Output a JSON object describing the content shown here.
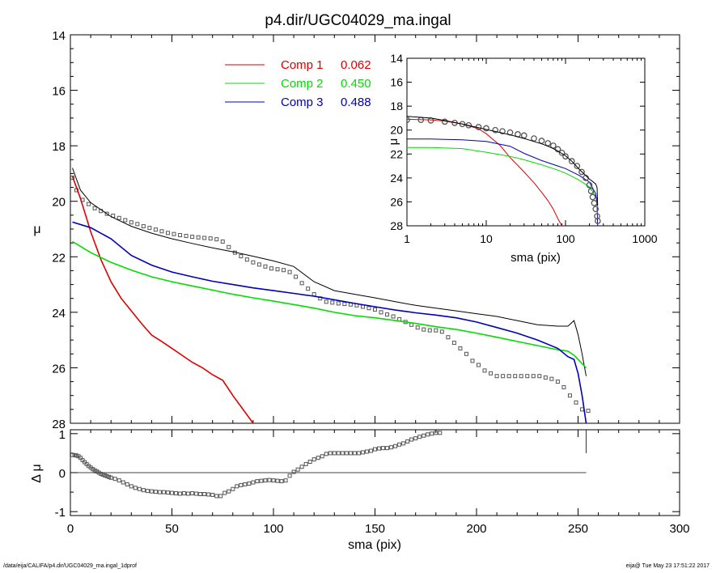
{
  "title": "p4.dir/UGC04029_ma.ingal",
  "footer_left": "/data/eija/CALIFA/p4.dir/UGC04029_ma.ingal_1dprof",
  "footer_right": "eija@  Tue May 23 17:51:22 2017",
  "colors": {
    "comp1": "#dd0000",
    "comp2": "#00dd00",
    "comp3": "#0000bb",
    "total": "#000000",
    "data": "#555555"
  },
  "chart_data": [
    {
      "type": "line",
      "panel": "main",
      "xlabel": "",
      "ylabel": "μ",
      "xlim": [
        0,
        300
      ],
      "ylim": [
        28,
        14
      ],
      "yticks": [
        "14",
        "16",
        "18",
        "20",
        "22",
        "24",
        "26",
        "28"
      ],
      "legend": [
        {
          "label": "Comp 1",
          "value": "0.062",
          "color": "#dd0000"
        },
        {
          "label": "Comp 2",
          "value": "0.450",
          "color": "#00dd00"
        },
        {
          "label": "Comp 3",
          "value": "0.488",
          "color": "#0000bb"
        }
      ],
      "legend_position": "top-center",
      "series": [
        {
          "role": "data",
          "marker": "square",
          "x": [
            1,
            3,
            6,
            9,
            12,
            15,
            18,
            21,
            24,
            27,
            30,
            33,
            36,
            39,
            42,
            45,
            48,
            51,
            54,
            57,
            60,
            63,
            66,
            69,
            72,
            75,
            78,
            81,
            84,
            87,
            90,
            93,
            96,
            99,
            102,
            105,
            108,
            111,
            114,
            117,
            120,
            123,
            126,
            129,
            132,
            135,
            138,
            141,
            144,
            147,
            150,
            153,
            156,
            159,
            162,
            165,
            168,
            171,
            174,
            177,
            180,
            183,
            186,
            189,
            192,
            195,
            198,
            201,
            204,
            207,
            210,
            213,
            216,
            219,
            222,
            225,
            228,
            231,
            234,
            237,
            240,
            243,
            246,
            249,
            252,
            255
          ],
          "y": [
            19.15,
            19.6,
            19.95,
            20.1,
            20.25,
            20.35,
            20.45,
            20.52,
            20.6,
            20.68,
            20.76,
            20.82,
            20.9,
            20.96,
            21.02,
            21.08,
            21.14,
            21.18,
            21.22,
            21.25,
            21.28,
            21.3,
            21.32,
            21.34,
            21.37,
            21.45,
            21.65,
            21.85,
            21.98,
            22.1,
            22.2,
            22.28,
            22.35,
            22.42,
            22.45,
            22.48,
            22.55,
            22.72,
            22.95,
            23.15,
            23.35,
            23.5,
            23.62,
            23.65,
            23.68,
            23.7,
            23.72,
            23.75,
            23.8,
            23.85,
            23.9,
            24.0,
            24.08,
            24.15,
            24.25,
            24.35,
            24.45,
            24.55,
            24.62,
            24.65,
            24.65,
            24.7,
            24.9,
            25.1,
            25.3,
            25.5,
            25.75,
            25.9,
            26.1,
            26.2,
            26.3,
            26.3,
            26.3,
            26.3,
            26.3,
            26.3,
            26.3,
            26.3,
            26.35,
            26.4,
            26.5,
            26.7,
            27.0,
            27.25,
            27.5,
            27.55
          ]
        },
        {
          "role": "total",
          "x": [
            1,
            5,
            10,
            15,
            20,
            30,
            40,
            50,
            60,
            70,
            80,
            90,
            100,
            110,
            120,
            130,
            140,
            150,
            160,
            170,
            180,
            190,
            200,
            210,
            220,
            230,
            240,
            245,
            248,
            250,
            252,
            254
          ],
          "y": [
            18.8,
            19.6,
            20.05,
            20.3,
            20.55,
            20.9,
            21.15,
            21.35,
            21.52,
            21.68,
            21.82,
            21.98,
            22.15,
            22.35,
            22.9,
            23.22,
            23.35,
            23.48,
            23.62,
            23.75,
            23.85,
            23.95,
            24.05,
            24.15,
            24.3,
            24.45,
            24.5,
            24.5,
            24.3,
            24.8,
            25.5,
            26.3
          ]
        },
        {
          "role": "comp1",
          "x": [
            1,
            5,
            10,
            15,
            20,
            25,
            30,
            35,
            40,
            45,
            50,
            55,
            60,
            65,
            70,
            75,
            80,
            85,
            90
          ],
          "y": [
            19.1,
            19.9,
            21.1,
            22.1,
            22.9,
            23.5,
            23.95,
            24.4,
            24.82,
            25.05,
            25.3,
            25.55,
            25.8,
            26.0,
            26.25,
            26.45,
            27.0,
            27.5,
            28.0
          ]
        },
        {
          "role": "comp2",
          "x": [
            1,
            10,
            20,
            30,
            40,
            50,
            60,
            70,
            80,
            90,
            100,
            110,
            120,
            130,
            140,
            150,
            160,
            170,
            180,
            190,
            200,
            210,
            220,
            230,
            240,
            245,
            248,
            250,
            252,
            254
          ],
          "y": [
            21.45,
            21.85,
            22.2,
            22.48,
            22.72,
            22.9,
            23.05,
            23.2,
            23.35,
            23.48,
            23.6,
            23.72,
            23.85,
            24.0,
            24.12,
            24.2,
            24.3,
            24.4,
            24.52,
            24.62,
            24.75,
            24.9,
            25.05,
            25.2,
            25.35,
            25.4,
            25.55,
            25.7,
            25.85,
            26.0
          ]
        },
        {
          "role": "comp3",
          "x": [
            1,
            10,
            20,
            30,
            40,
            50,
            60,
            70,
            80,
            90,
            100,
            110,
            120,
            130,
            140,
            150,
            160,
            170,
            180,
            190,
            200,
            210,
            220,
            230,
            240,
            245,
            248,
            250,
            252,
            254
          ],
          "y": [
            20.75,
            20.95,
            21.35,
            21.95,
            22.3,
            22.55,
            22.72,
            22.88,
            23.0,
            23.12,
            23.22,
            23.32,
            23.42,
            23.55,
            23.68,
            23.8,
            23.92,
            24.02,
            24.1,
            24.2,
            24.35,
            24.55,
            24.75,
            25.0,
            25.3,
            25.6,
            25.7,
            26.2,
            27.0,
            28.0
          ]
        }
      ]
    },
    {
      "type": "scatter",
      "panel": "residual",
      "xlabel": "sma (pix)",
      "ylabel": "Δ μ",
      "xlim": [
        0,
        300
      ],
      "ylim": [
        -1.1,
        1.1
      ],
      "xticks": [
        "0",
        "50",
        "100",
        "150",
        "200",
        "250",
        "300"
      ],
      "yticks": [
        "-1",
        "0",
        "1"
      ],
      "zero_line": true,
      "series": [
        {
          "role": "residual",
          "marker": "square",
          "x": [
            1,
            2,
            3,
            4,
            5,
            6,
            7,
            8,
            9,
            10,
            11,
            12,
            13,
            14,
            15,
            16,
            17,
            18,
            19,
            20,
            22,
            24,
            26,
            28,
            30,
            32,
            34,
            36,
            38,
            40,
            42,
            44,
            46,
            48,
            50,
            52,
            54,
            56,
            58,
            60,
            62,
            64,
            66,
            68,
            70,
            72,
            74,
            76,
            78,
            80,
            82,
            84,
            86,
            88,
            90,
            92,
            94,
            96,
            98,
            100,
            102,
            104,
            106,
            108,
            110,
            112,
            114,
            116,
            118,
            120,
            122,
            124,
            126,
            128,
            130,
            132,
            134,
            136,
            138,
            140,
            142,
            144,
            146,
            148,
            150,
            152,
            154,
            156,
            158,
            160,
            162,
            164,
            166,
            168,
            170,
            172,
            174,
            176,
            178,
            180,
            182
          ],
          "y": [
            0.45,
            0.45,
            0.44,
            0.42,
            0.38,
            0.32,
            0.27,
            0.22,
            0.17,
            0.13,
            0.09,
            0.06,
            0.03,
            0.0,
            -0.03,
            -0.05,
            -0.07,
            -0.09,
            -0.11,
            -0.13,
            -0.16,
            -0.2,
            -0.25,
            -0.3,
            -0.35,
            -0.39,
            -0.42,
            -0.45,
            -0.47,
            -0.48,
            -0.49,
            -0.5,
            -0.5,
            -0.51,
            -0.52,
            -0.53,
            -0.54,
            -0.53,
            -0.54,
            -0.53,
            -0.54,
            -0.55,
            -0.55,
            -0.56,
            -0.57,
            -0.6,
            -0.6,
            -0.52,
            -0.48,
            -0.42,
            -0.35,
            -0.32,
            -0.3,
            -0.28,
            -0.25,
            -0.22,
            -0.21,
            -0.2,
            -0.19,
            -0.2,
            -0.21,
            -0.22,
            -0.2,
            -0.08,
            0.02,
            0.08,
            0.15,
            0.22,
            0.28,
            0.34,
            0.38,
            0.42,
            0.48,
            0.5,
            0.5,
            0.5,
            0.5,
            0.5,
            0.5,
            0.5,
            0.5,
            0.52,
            0.54,
            0.56,
            0.6,
            0.62,
            0.63,
            0.63,
            0.65,
            0.68,
            0.72,
            0.75,
            0.8,
            0.85,
            0.88,
            0.92,
            0.95,
            0.98,
            1.0,
            1.02,
            1.02
          ]
        }
      ]
    },
    {
      "type": "line",
      "panel": "inset",
      "xlabel": "sma (pix)",
      "ylabel": "μ",
      "xscale": "log",
      "xlim": [
        1,
        1000
      ],
      "ylim": [
        28,
        14
      ],
      "xticks": [
        "1",
        "10",
        "100",
        "1000"
      ],
      "yticks": [
        "14",
        "16",
        "18",
        "20",
        "22",
        "24",
        "26",
        "28"
      ],
      "series": [
        {
          "role": "data",
          "marker": "circle",
          "x": [
            1,
            1.5,
            2,
            3,
            4,
            5,
            6,
            8,
            10,
            13,
            16,
            20,
            25,
            30,
            40,
            50,
            60,
            70,
            80,
            90,
            100,
            120,
            140,
            160,
            180,
            200,
            210,
            220,
            230,
            240,
            250,
            255
          ],
          "y": [
            19.15,
            19.15,
            19.2,
            19.3,
            19.4,
            19.5,
            19.6,
            19.75,
            19.85,
            20.0,
            20.1,
            20.2,
            20.35,
            20.45,
            20.7,
            20.9,
            21.1,
            21.3,
            21.6,
            21.9,
            22.2,
            22.6,
            23.0,
            23.5,
            24.0,
            24.6,
            25.1,
            25.6,
            26.1,
            26.6,
            27.2,
            27.6
          ]
        },
        {
          "role": "total",
          "x": [
            1,
            2,
            3,
            5,
            8,
            10,
            15,
            20,
            30,
            40,
            50,
            60,
            70,
            80,
            100,
            120,
            150,
            180,
            200,
            220,
            240,
            250,
            254
          ],
          "y": [
            18.85,
            19.0,
            19.2,
            19.5,
            19.8,
            19.95,
            20.2,
            20.4,
            20.7,
            20.95,
            21.15,
            21.35,
            21.55,
            21.75,
            22.15,
            22.6,
            23.3,
            23.8,
            24.1,
            24.3,
            24.5,
            24.8,
            26.3
          ]
        },
        {
          "role": "comp1",
          "x": [
            1,
            2,
            3,
            5,
            8,
            10,
            15,
            20,
            30,
            40,
            50,
            60,
            70,
            80,
            90
          ],
          "y": [
            19.1,
            19.15,
            19.25,
            19.5,
            19.9,
            20.3,
            21.3,
            22.3,
            23.5,
            24.4,
            25.2,
            25.9,
            26.6,
            27.4,
            28.0
          ]
        },
        {
          "role": "comp2",
          "x": [
            1,
            2,
            3,
            5,
            10,
            20,
            30,
            50,
            80,
            100,
            150,
            200,
            250,
            254
          ],
          "y": [
            21.45,
            21.45,
            21.5,
            21.55,
            21.85,
            22.2,
            22.48,
            22.9,
            23.35,
            23.6,
            24.2,
            24.75,
            25.7,
            26.0
          ]
        },
        {
          "role": "comp3",
          "x": [
            1,
            2,
            3,
            5,
            10,
            20,
            30,
            50,
            80,
            100,
            150,
            200,
            240,
            250,
            254
          ],
          "y": [
            20.75,
            20.75,
            20.78,
            20.82,
            20.95,
            21.35,
            21.95,
            22.55,
            23.0,
            23.22,
            23.8,
            24.35,
            25.3,
            26.2,
            28.0
          ]
        }
      ]
    }
  ]
}
